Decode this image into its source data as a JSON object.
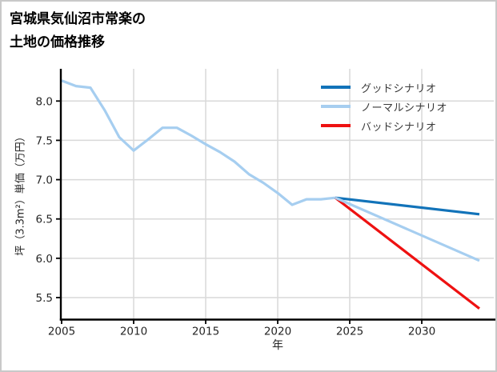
{
  "title": {
    "line1": "宮城県気仙沼市常楽の",
    "line2": "土地の価格推移"
  },
  "legend": {
    "items": [
      {
        "label": "グッドシナリオ",
        "color": "#1273b9"
      },
      {
        "label": "ノーマルシナリオ",
        "color": "#a6cef0"
      },
      {
        "label": "バッドシナリオ",
        "color": "#ee1111"
      }
    ]
  },
  "chart_data": {
    "type": "line",
    "title": "宮城県気仙沼市常楽の土地の価格推移",
    "xlabel": "年",
    "ylabel": "坪（3.3m²）単価（万円）",
    "x_ticks": [
      2005,
      2010,
      2015,
      2020,
      2025,
      2030
    ],
    "y_ticks": [
      5.5,
      6.0,
      6.5,
      7.0,
      7.5,
      8.0
    ],
    "xlim": [
      2005,
      2035
    ],
    "ylim": [
      5.22,
      8.41
    ],
    "grid": true,
    "grid_color": "#d9d9d9",
    "axis_color": "#000000",
    "tick_label_color": "#262626",
    "legend_position": "upper right",
    "series": [
      {
        "id": "history",
        "in_legend": false,
        "color": "#a6cef0",
        "x": [
          2005,
          2006,
          2007,
          2008,
          2009,
          2010,
          2011,
          2012,
          2013,
          2014,
          2015,
          2016,
          2017,
          2018,
          2019,
          2020,
          2021,
          2022,
          2023,
          2024
        ],
        "values": [
          8.26,
          8.19,
          8.17,
          7.88,
          7.54,
          7.37,
          7.51,
          7.66,
          7.66,
          7.56,
          7.45,
          7.35,
          7.23,
          7.07,
          6.96,
          6.83,
          6.68,
          6.75,
          6.75,
          6.77
        ]
      },
      {
        "id": "good-scenario",
        "name": "グッドシナリオ",
        "in_legend": true,
        "color": "#1273b9",
        "x": [
          2024,
          2034
        ],
        "values": [
          6.77,
          6.56
        ]
      },
      {
        "id": "bad-scenario",
        "name": "バッドシナリオ",
        "in_legend": true,
        "color": "#ee1111",
        "x": [
          2024,
          2034
        ],
        "values": [
          6.77,
          5.36
        ]
      },
      {
        "id": "normal-scenario",
        "name": "ノーマルシナリオ",
        "in_legend": true,
        "color": "#a6cef0",
        "x": [
          2024,
          2034
        ],
        "values": [
          6.77,
          5.97
        ]
      }
    ]
  }
}
